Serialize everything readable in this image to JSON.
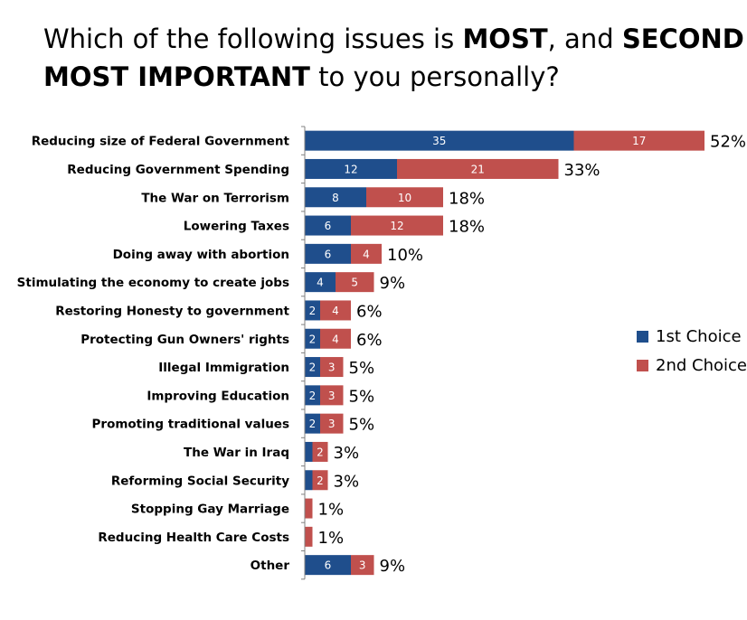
{
  "title": {
    "p1": "Which of the following issues is ",
    "b1": "MOST",
    "p2": ", and ",
    "b2": "SECOND",
    "b3": "MOST IMPORTANT",
    "p3": " to you personally?"
  },
  "colors": {
    "first": "#1f4e8c",
    "second": "#c0504d"
  },
  "chart_data": {
    "type": "bar",
    "orientation": "horizontal",
    "stacked": true,
    "categories": [
      "Reducing size of Federal Government",
      "Reducing Government Spending",
      "The War on Terrorism",
      "Lowering Taxes",
      "Doing away with abortion",
      "Stimulating the economy to create jobs",
      "Restoring Honesty to government",
      "Protecting Gun Owners' rights",
      "Illegal Immigration",
      "Improving Education",
      "Promoting traditional values",
      "The War in Iraq",
      "Reforming Social Security",
      "Stopping Gay Marriage",
      "Reducing Health Care Costs",
      "Other"
    ],
    "series": [
      {
        "name": "1st Choice",
        "values": [
          35,
          12,
          8,
          6,
          6,
          4,
          2,
          2,
          2,
          2,
          2,
          1,
          1,
          0,
          0,
          6
        ],
        "labels": [
          "35",
          "12",
          "8",
          "6",
          "6",
          "4",
          "2",
          "2",
          "2",
          "2",
          "2",
          "",
          "",
          "",
          "",
          "6"
        ]
      },
      {
        "name": "2nd Choice",
        "values": [
          17,
          21,
          10,
          12,
          4,
          5,
          4,
          4,
          3,
          3,
          3,
          2,
          2,
          1,
          1,
          3
        ],
        "labels": [
          "17",
          "21",
          "10",
          "12",
          "4",
          "5",
          "4",
          "4",
          "3",
          "3",
          "3",
          "2",
          "2",
          "",
          "",
          "3"
        ]
      }
    ],
    "totals": [
      "52%",
      "33%",
      "18%",
      "18%",
      "10%",
      "9%",
      "6%",
      "6%",
      "5%",
      "5%",
      "5%",
      "3%",
      "3%",
      "1%",
      "1%",
      "9%"
    ],
    "xlim": [
      0,
      52
    ],
    "legend": {
      "position": "right",
      "entries": [
        "1st Choice",
        "2nd Choice"
      ]
    }
  }
}
